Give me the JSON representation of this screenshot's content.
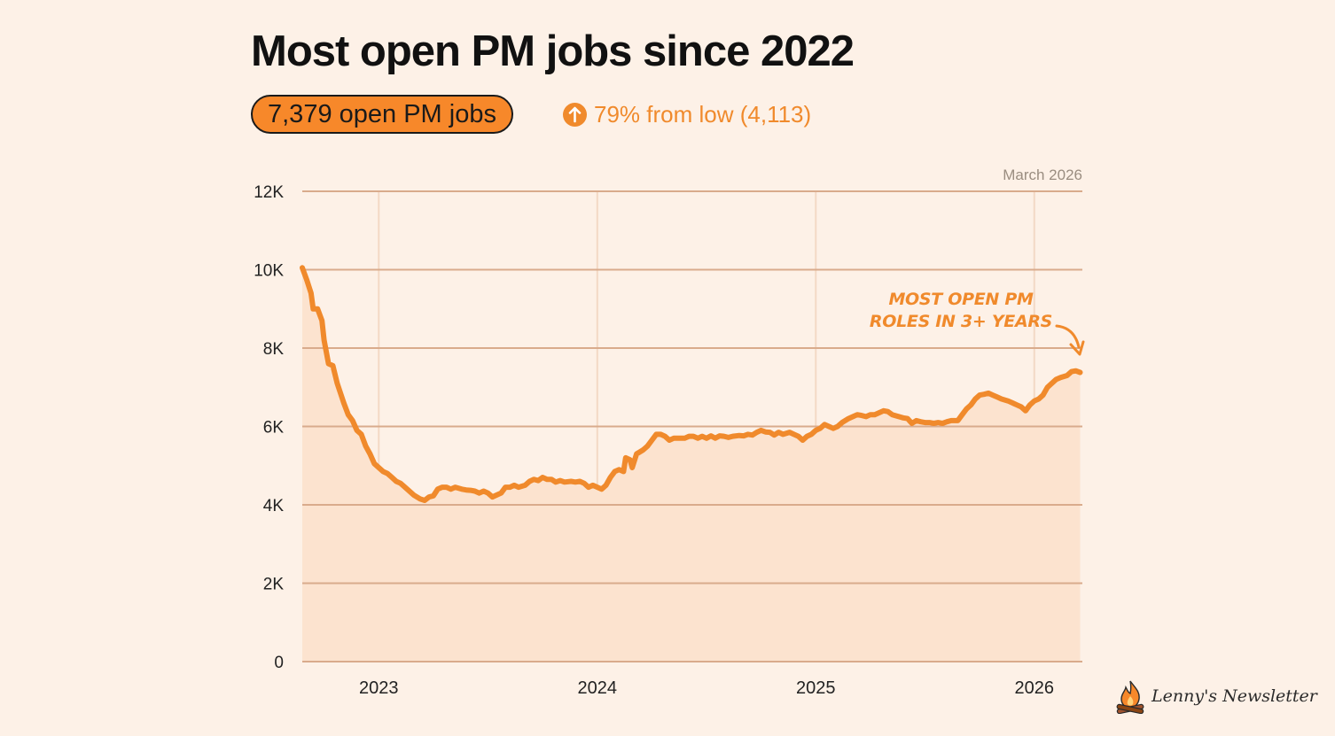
{
  "header": {
    "title": "Most open PM jobs since 2022",
    "pill_text": "7,379 open PM jobs",
    "delta_icon": "arrow-up-icon",
    "delta_text": "79% from low (4,113)"
  },
  "annotation": {
    "line1": "MOST OPEN PM",
    "line2": "ROLES IN 3+ YEARS"
  },
  "branding": {
    "logo_icon": "campfire-icon",
    "text": "Lenny's Newsletter"
  },
  "colors": {
    "background": "#fdf1e7",
    "accent": "#f7882a",
    "line": "#f08a2c",
    "area": "#fce3cf",
    "grid": "#d9ab8c"
  },
  "chart_data": {
    "type": "area",
    "title": "Most open PM jobs since 2022",
    "date_label": "March 2026",
    "xlabel": "",
    "ylabel": "",
    "xlim": [
      2022.65,
      2026.22
    ],
    "ylim": [
      0,
      12000
    ],
    "yticks": [
      0,
      2000,
      4000,
      6000,
      8000,
      10000,
      12000
    ],
    "ytick_labels": [
      "0",
      "2K",
      "4K",
      "6K",
      "8K",
      "10K",
      "12K"
    ],
    "xticks": [
      2023,
      2024,
      2025,
      2026
    ],
    "xtick_labels": [
      "2023",
      "2024",
      "2025",
      "2026"
    ],
    "grid": true,
    "series": [
      {
        "name": "Open PM jobs",
        "points": [
          [
            2022.65,
            10050
          ],
          [
            2022.67,
            9750
          ],
          [
            2022.69,
            9400
          ],
          [
            2022.7,
            9000
          ],
          [
            2022.72,
            9000
          ],
          [
            2022.74,
            8700
          ],
          [
            2022.75,
            8200
          ],
          [
            2022.77,
            7600
          ],
          [
            2022.79,
            7550
          ],
          [
            2022.81,
            7100
          ],
          [
            2022.84,
            6600
          ],
          [
            2022.86,
            6300
          ],
          [
            2022.88,
            6150
          ],
          [
            2022.9,
            5900
          ],
          [
            2022.92,
            5800
          ],
          [
            2022.94,
            5500
          ],
          [
            2022.96,
            5300
          ],
          [
            2022.98,
            5050
          ],
          [
            2023.0,
            4950
          ],
          [
            2023.02,
            4850
          ],
          [
            2023.04,
            4800
          ],
          [
            2023.06,
            4700
          ],
          [
            2023.08,
            4600
          ],
          [
            2023.1,
            4550
          ],
          [
            2023.12,
            4450
          ],
          [
            2023.14,
            4350
          ],
          [
            2023.16,
            4250
          ],
          [
            2023.19,
            4150
          ],
          [
            2023.21,
            4113
          ],
          [
            2023.23,
            4200
          ],
          [
            2023.25,
            4230
          ],
          [
            2023.27,
            4400
          ],
          [
            2023.29,
            4450
          ],
          [
            2023.31,
            4450
          ],
          [
            2023.33,
            4400
          ],
          [
            2023.35,
            4450
          ],
          [
            2023.38,
            4400
          ],
          [
            2023.4,
            4380
          ],
          [
            2023.42,
            4370
          ],
          [
            2023.44,
            4350
          ],
          [
            2023.46,
            4300
          ],
          [
            2023.48,
            4350
          ],
          [
            2023.5,
            4300
          ],
          [
            2023.52,
            4200
          ],
          [
            2023.54,
            4250
          ],
          [
            2023.56,
            4300
          ],
          [
            2023.58,
            4450
          ],
          [
            2023.6,
            4450
          ],
          [
            2023.62,
            4500
          ],
          [
            2023.64,
            4450
          ],
          [
            2023.67,
            4500
          ],
          [
            2023.69,
            4600
          ],
          [
            2023.71,
            4650
          ],
          [
            2023.73,
            4620
          ],
          [
            2023.75,
            4700
          ],
          [
            2023.77,
            4650
          ],
          [
            2023.79,
            4650
          ],
          [
            2023.81,
            4580
          ],
          [
            2023.83,
            4620
          ],
          [
            2023.85,
            4580
          ],
          [
            2023.88,
            4600
          ],
          [
            2023.9,
            4580
          ],
          [
            2023.92,
            4600
          ],
          [
            2023.94,
            4550
          ],
          [
            2023.96,
            4450
          ],
          [
            2023.98,
            4500
          ],
          [
            2024.0,
            4450
          ],
          [
            2024.02,
            4400
          ],
          [
            2024.04,
            4500
          ],
          [
            2024.06,
            4700
          ],
          [
            2024.08,
            4850
          ],
          [
            2024.1,
            4900
          ],
          [
            2024.12,
            4850
          ],
          [
            2024.13,
            5200
          ],
          [
            2024.15,
            5150
          ],
          [
            2024.16,
            4950
          ],
          [
            2024.18,
            5300
          ],
          [
            2024.21,
            5400
          ],
          [
            2024.23,
            5500
          ],
          [
            2024.25,
            5650
          ],
          [
            2024.27,
            5800
          ],
          [
            2024.29,
            5800
          ],
          [
            2024.31,
            5750
          ],
          [
            2024.33,
            5650
          ],
          [
            2024.35,
            5700
          ],
          [
            2024.38,
            5700
          ],
          [
            2024.4,
            5700
          ],
          [
            2024.42,
            5750
          ],
          [
            2024.44,
            5750
          ],
          [
            2024.46,
            5700
          ],
          [
            2024.48,
            5750
          ],
          [
            2024.5,
            5700
          ],
          [
            2024.52,
            5760
          ],
          [
            2024.54,
            5700
          ],
          [
            2024.56,
            5760
          ],
          [
            2024.58,
            5750
          ],
          [
            2024.6,
            5720
          ],
          [
            2024.62,
            5750
          ],
          [
            2024.65,
            5770
          ],
          [
            2024.67,
            5760
          ],
          [
            2024.69,
            5800
          ],
          [
            2024.71,
            5780
          ],
          [
            2024.73,
            5850
          ],
          [
            2024.75,
            5900
          ],
          [
            2024.77,
            5860
          ],
          [
            2024.79,
            5850
          ],
          [
            2024.81,
            5780
          ],
          [
            2024.83,
            5850
          ],
          [
            2024.85,
            5800
          ],
          [
            2024.88,
            5850
          ],
          [
            2024.9,
            5800
          ],
          [
            2024.92,
            5750
          ],
          [
            2024.94,
            5650
          ],
          [
            2024.96,
            5750
          ],
          [
            2024.98,
            5800
          ],
          [
            2025.0,
            5900
          ],
          [
            2025.02,
            5950
          ],
          [
            2025.04,
            6050
          ],
          [
            2025.06,
            6000
          ],
          [
            2025.08,
            5950
          ],
          [
            2025.1,
            6000
          ],
          [
            2025.12,
            6100
          ],
          [
            2025.15,
            6200
          ],
          [
            2025.17,
            6250
          ],
          [
            2025.19,
            6300
          ],
          [
            2025.21,
            6280
          ],
          [
            2025.23,
            6250
          ],
          [
            2025.25,
            6300
          ],
          [
            2025.27,
            6300
          ],
          [
            2025.29,
            6350
          ],
          [
            2025.31,
            6400
          ],
          [
            2025.33,
            6380
          ],
          [
            2025.35,
            6300
          ],
          [
            2025.38,
            6250
          ],
          [
            2025.4,
            6220
          ],
          [
            2025.42,
            6200
          ],
          [
            2025.44,
            6080
          ],
          [
            2025.46,
            6150
          ],
          [
            2025.48,
            6120
          ],
          [
            2025.5,
            6100
          ],
          [
            2025.52,
            6100
          ],
          [
            2025.54,
            6080
          ],
          [
            2025.56,
            6100
          ],
          [
            2025.58,
            6080
          ],
          [
            2025.6,
            6120
          ],
          [
            2025.62,
            6150
          ],
          [
            2025.65,
            6150
          ],
          [
            2025.67,
            6300
          ],
          [
            2025.69,
            6450
          ],
          [
            2025.71,
            6550
          ],
          [
            2025.73,
            6700
          ],
          [
            2025.75,
            6800
          ],
          [
            2025.77,
            6820
          ],
          [
            2025.79,
            6850
          ],
          [
            2025.81,
            6800
          ],
          [
            2025.83,
            6750
          ],
          [
            2025.85,
            6700
          ],
          [
            2025.88,
            6650
          ],
          [
            2025.9,
            6600
          ],
          [
            2025.92,
            6550
          ],
          [
            2025.94,
            6500
          ],
          [
            2025.96,
            6400
          ],
          [
            2025.98,
            6550
          ],
          [
            2026.0,
            6650
          ],
          [
            2026.02,
            6700
          ],
          [
            2026.04,
            6800
          ],
          [
            2026.06,
            7000
          ],
          [
            2026.08,
            7100
          ],
          [
            2026.1,
            7200
          ],
          [
            2026.12,
            7250
          ],
          [
            2026.15,
            7300
          ],
          [
            2026.17,
            7400
          ],
          [
            2026.19,
            7420
          ],
          [
            2026.21,
            7379
          ]
        ]
      }
    ]
  }
}
